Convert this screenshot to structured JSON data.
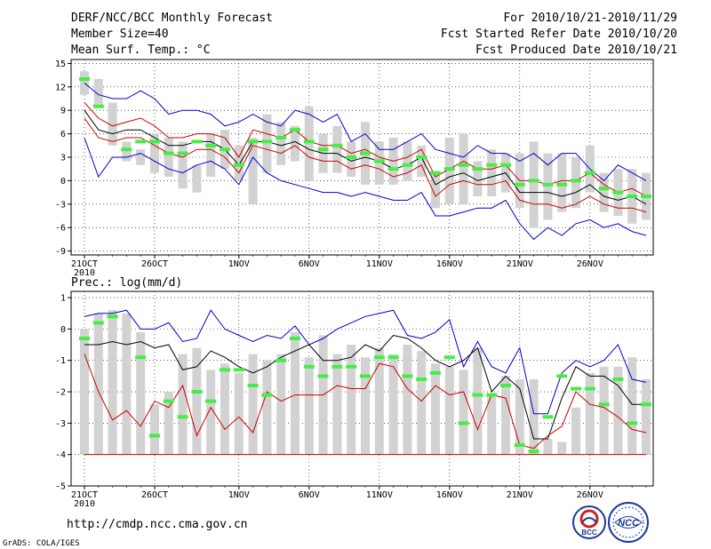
{
  "header": {
    "title": "DERF/NCC/BCC Monthly Forecast",
    "member_size": "Member Size=40",
    "variable1": "Mean Surf. Temp.: °C",
    "period": "For 2010/10/21-2010/11/29",
    "started": "Fcst Started Refer Date 2010/10/20",
    "produced": "Fcst Produced Date 2010/10/21"
  },
  "footer": {
    "url": "http://cmdp.ncc.cma.gov.cn",
    "grads": "GrADS: COLA/IGES",
    "logo_bcc": "BCC",
    "logo_ncc": "NCC"
  },
  "colors": {
    "bar": "#d2d2d2",
    "mean": "#000000",
    "spread_inner": "#cc0000",
    "spread_outer": "#0000cc",
    "obs": "#44ee44",
    "frame": "#000000"
  },
  "chart_data": [
    {
      "type": "bar",
      "title": "Mean Surf. Temp.: °C",
      "ylabel": "°C",
      "ylim": [
        -9.5,
        15.5
      ],
      "yticks": [
        15,
        12,
        9,
        6,
        3,
        0,
        -3,
        -6,
        -9
      ],
      "xticks": [
        {
          "day": 0,
          "label": "21OCT"
        },
        {
          "day": 5,
          "label": "26OCT"
        },
        {
          "day": 11,
          "label": "1NOV"
        },
        {
          "day": 16,
          "label": "6NOV"
        },
        {
          "day": 21,
          "label": "11NOV"
        },
        {
          "day": 26,
          "label": "16NOV"
        },
        {
          "day": 31,
          "label": "21NOV"
        },
        {
          "day": 36,
          "label": "26NOV"
        }
      ],
      "year_label": "2010",
      "days": 40,
      "bar_low": [
        11,
        9.5,
        4.5,
        2.5,
        2,
        1,
        0.5,
        -1,
        -1.5,
        0.5,
        1.5,
        0,
        -3,
        1,
        2,
        2.5,
        0,
        1,
        1,
        0.5,
        -0.5,
        -0.5,
        -0.5,
        0,
        0.5,
        -3.5,
        -3,
        -3,
        -2,
        -2,
        -1.5,
        -3.5,
        -6,
        -5,
        -4,
        -3.5,
        -1.5,
        -4,
        -4.5,
        -5.5,
        -5
      ],
      "bar_high": [
        14,
        13,
        10,
        5,
        4,
        6,
        5.5,
        5,
        2,
        6,
        6.5,
        4.5,
        5.5,
        8.5,
        7.5,
        7,
        9.5,
        6,
        7,
        5,
        7.5,
        5,
        5.5,
        5,
        4.5,
        1,
        5.5,
        6,
        2.5,
        4,
        3.5,
        3.5,
        5,
        3.5,
        3.5,
        3,
        4.5,
        1,
        1.5,
        1.5,
        1
      ],
      "outer_high": [
        12.5,
        11,
        10.5,
        10.5,
        11.5,
        10.5,
        8.5,
        9,
        9,
        8.5,
        7,
        7.5,
        8.5,
        7.5,
        7,
        9,
        8.5,
        7.5,
        8.5,
        5,
        6,
        4,
        4,
        5,
        6,
        4,
        3.5,
        3,
        4.5,
        3.5,
        3.5,
        2.5,
        3.5,
        2,
        3.5,
        3.5,
        1.5,
        0,
        2,
        1,
        0
      ],
      "inner_high": [
        10,
        8,
        7,
        7.5,
        8,
        7,
        5.5,
        5.5,
        6,
        6,
        5.5,
        3,
        6.5,
        6,
        5.5,
        6.5,
        5,
        4.5,
        4.5,
        3.5,
        4,
        3,
        2.5,
        3,
        4,
        0.5,
        1.5,
        2.5,
        1.5,
        1.5,
        2,
        0,
        0,
        -0.5,
        0,
        0,
        1,
        -0.5,
        -1.5,
        -1,
        -2
      ],
      "mean": [
        9,
        6.5,
        6,
        6.5,
        6.5,
        5.5,
        4.5,
        4.5,
        5,
        5,
        4,
        2,
        5,
        5,
        4.5,
        5,
        4,
        3.5,
        3.5,
        2.5,
        3,
        2.5,
        1.5,
        2,
        3,
        -0.5,
        0.5,
        1,
        0,
        0.5,
        1,
        -1.5,
        -1.5,
        -1.5,
        -2,
        -1.5,
        -0.5,
        -2,
        -2.5,
        -2,
        -3
      ],
      "inner_low": [
        8,
        5.5,
        5,
        5.5,
        5.5,
        4.5,
        3.5,
        3,
        4,
        4,
        3,
        1,
        4.5,
        4,
        3.5,
        4.5,
        3,
        2.5,
        2.5,
        1.5,
        2,
        1.5,
        0.5,
        1,
        2,
        -2,
        -0.5,
        0,
        -0.5,
        -0.5,
        0,
        -2.5,
        -3,
        -3,
        -3.5,
        -3,
        -2,
        -3,
        -3.5,
        -3.5,
        -4
      ],
      "outer_low": [
        5.5,
        0.5,
        3,
        3,
        3.5,
        2.5,
        1.5,
        1,
        2,
        2.5,
        1.5,
        -0.5,
        3,
        1,
        0,
        -0.5,
        -1,
        -1.5,
        -1.5,
        -2,
        -1.5,
        -2,
        -2.5,
        -2.5,
        -1.5,
        -4.5,
        -4.5,
        -4,
        -3.5,
        -3.5,
        -2.5,
        -5.5,
        -7.5,
        -6,
        -7,
        -5.5,
        -5,
        -6,
        -5.5,
        -6.5,
        -7
      ],
      "obs": [
        13,
        9.5,
        null,
        4,
        5,
        5,
        3.5,
        3.5,
        5,
        4.5,
        4,
        2,
        5,
        5,
        5.5,
        6.5,
        5,
        4,
        4.5,
        3,
        3.5,
        2.5,
        1.5,
        2,
        3,
        1,
        1.5,
        2,
        1.5,
        2,
        2,
        -0.5,
        0,
        -0.5,
        -0.5,
        0,
        1,
        -1,
        -1.5,
        -2,
        -2
      ]
    },
    {
      "type": "bar",
      "title": "Prec.: log(mm/d)",
      "ylabel": "log(mm/d)",
      "ylim": [
        -5,
        1.2
      ],
      "yticks": [
        1,
        0,
        -1,
        -2,
        -3,
        -4,
        -5
      ],
      "xticks": [
        {
          "day": 0,
          "label": "21OCT"
        },
        {
          "day": 5,
          "label": "26OCT"
        },
        {
          "day": 11,
          "label": "1NOV"
        },
        {
          "day": 16,
          "label": "6NOV"
        },
        {
          "day": 21,
          "label": "11NOV"
        },
        {
          "day": 26,
          "label": "16NOV"
        },
        {
          "day": 31,
          "label": "21NOV"
        },
        {
          "day": 36,
          "label": "26NOV"
        }
      ],
      "year_label": "2010",
      "days": 40,
      "bar_top": [
        0,
        0.5,
        0.6,
        0.5,
        -0.1,
        -2.4,
        -2,
        -0.8,
        -0.6,
        -1.3,
        -1.1,
        -1.4,
        -0.8,
        -1.0,
        -0.8,
        -0.1,
        -0.9,
        -0.2,
        -0.8,
        -0.5,
        -0.9,
        -0.6,
        -0.8,
        -0.5,
        -0.7,
        -1.1,
        -1.2,
        -1.3,
        -0.6,
        -2.1,
        -1.5,
        -1.6,
        -1.6,
        -3.5,
        -3.6,
        -2.5,
        -1.4,
        -1.2,
        -1.2,
        -0.9,
        -1.6
      ],
      "outer_high": [
        0.4,
        0.5,
        0.5,
        0.6,
        0,
        0,
        0.2,
        -0.4,
        -0.3,
        0.6,
        0,
        -0.2,
        -0.4,
        -0.2,
        -0.3,
        0.1,
        -0.5,
        -0.3,
        0,
        0.2,
        0.4,
        0.5,
        0.6,
        -0.2,
        -0.3,
        -0.1,
        0.3,
        -1.2,
        -0.4,
        -1.2,
        -1.4,
        -0.6,
        -2.7,
        -2.7,
        -1.4,
        -1.0,
        -1.2,
        -1.0,
        -0.5,
        -1.6,
        -1.7
      ],
      "mean": [
        -0.5,
        -0.5,
        -0.4,
        -0.5,
        -0.4,
        -0.6,
        -0.5,
        -1.3,
        -1.2,
        -0.7,
        -0.9,
        -1.2,
        -1.4,
        -1.2,
        -0.9,
        -0.7,
        -0.5,
        -1.0,
        -1.0,
        -0.9,
        -0.5,
        -0.7,
        -0.2,
        -0.3,
        -0.6,
        -1.0,
        -1.2,
        -1.0,
        -0.6,
        -2.0,
        -1.5,
        -1.9,
        -3.5,
        -3.5,
        -2.2,
        -1.2,
        -1.5,
        -1.5,
        -1.8,
        -2.4,
        -2.4
      ],
      "inner_low": [
        -0.8,
        -2.0,
        -2.9,
        -2.6,
        -3.1,
        -2.3,
        -2.5,
        -1.8,
        -3.4,
        -2.5,
        -3.2,
        -2.8,
        -3.3,
        -2.0,
        -2.3,
        -2.1,
        -2.1,
        -2.1,
        -1.8,
        -1.9,
        -1.9,
        -1.1,
        -1.2,
        -1.9,
        -2.3,
        -1.8,
        -2.1,
        -2.0,
        -3.2,
        -2.1,
        -2.2,
        -3.7,
        -3.8,
        -3.4,
        -3.1,
        -2.0,
        -2.4,
        -2.5,
        -2.8,
        -3.2,
        -3.3
      ],
      "outer_low": -4,
      "obs": [
        -0.3,
        0.2,
        0.4,
        null,
        -0.9,
        -3.4,
        -2.3,
        -2.8,
        -2.0,
        -2.3,
        -1.3,
        -1.3,
        -1.8,
        -2.1,
        -1.0,
        -0.3,
        -1.2,
        -1.5,
        -1.2,
        -1.2,
        -1.5,
        -0.9,
        -0.9,
        -1.5,
        -1.6,
        -1.4,
        -0.9,
        -3.0,
        -2.1,
        -2.1,
        -1.8,
        -3.7,
        -3.9,
        -2.8,
        -1.5,
        -1.9,
        -1.9,
        -2.4,
        -1.6,
        -3.0,
        -2.4
      ]
    }
  ]
}
